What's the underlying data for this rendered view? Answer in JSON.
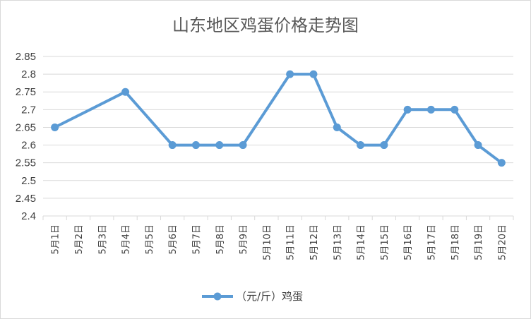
{
  "chart_data": {
    "type": "line",
    "title": "山东地区鸡蛋价格走势图",
    "categories": [
      "5月1日",
      "5月2日",
      "5月3日",
      "5月4日",
      "5月5日",
      "5月6日",
      "5月7日",
      "5月8日",
      "5月9日",
      "5月10日",
      "5月11日",
      "5月12日",
      "5月13日",
      "5月14日",
      "5月15日",
      "5月16日",
      "5月17日",
      "5月18日",
      "5月19日",
      "5月20日"
    ],
    "series": [
      {
        "name": "（元/斤）鸡蛋",
        "values": [
          2.65,
          null,
          null,
          2.75,
          null,
          2.6,
          2.6,
          2.6,
          2.6,
          null,
          2.8,
          2.8,
          2.65,
          2.6,
          2.6,
          2.7,
          2.7,
          2.7,
          2.6,
          2.55
        ]
      }
    ],
    "ylim": [
      2.4,
      2.85
    ],
    "yticks": [
      "2.4",
      "2.45",
      "2.5",
      "2.55",
      "2.6",
      "2.65",
      "2.7",
      "2.75",
      "2.8",
      "2.85"
    ],
    "grid": true,
    "legend": "bottom",
    "color": "#5b9bd5"
  }
}
